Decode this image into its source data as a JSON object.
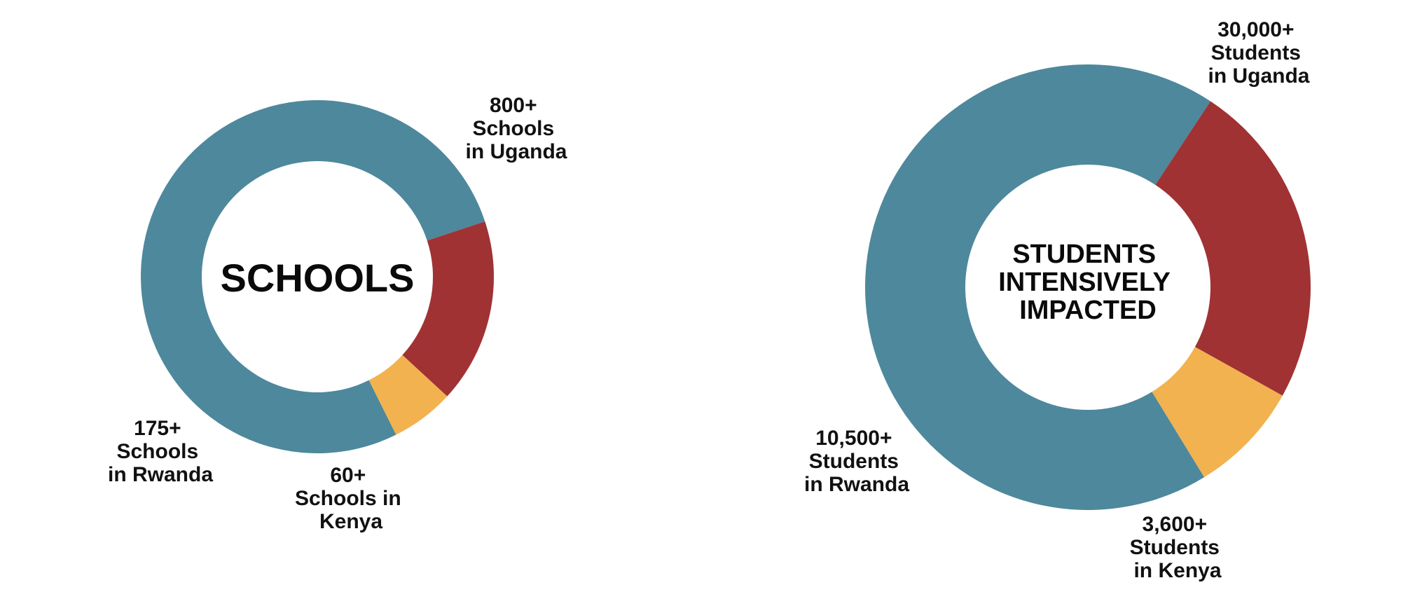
{
  "colors": {
    "uganda": "#4e889c",
    "rwanda": "#a03234",
    "kenya": "#f2b24f",
    "text": "#111111",
    "background": "#ffffff"
  },
  "chart_data": [
    {
      "type": "pie",
      "title": "SCHOOLS",
      "categories": [
        "Uganda",
        "Rwanda",
        "Kenya"
      ],
      "values": [
        800,
        175,
        60
      ],
      "labels": [
        [
          "800+",
          "Schools",
          "in Uganda"
        ],
        [
          "175+",
          "Schools",
          "in Rwanda"
        ],
        [
          "60+",
          "Schools in",
          "Kenya"
        ]
      ]
    },
    {
      "type": "pie",
      "title": "STUDENTS INTENSIVELY IMPACTED",
      "title_lines": [
        "STUDENTS",
        "INTENSIVELY",
        "IMPACTED"
      ],
      "categories": [
        "Uganda",
        "Rwanda",
        "Kenya"
      ],
      "values": [
        30000,
        10500,
        3600
      ],
      "labels": [
        [
          "30,000+",
          "Students",
          "in Uganda"
        ],
        [
          "10,500+",
          "Students",
          "in Rwanda"
        ],
        [
          "3,600+",
          "Students",
          "in Kenya"
        ]
      ]
    }
  ]
}
